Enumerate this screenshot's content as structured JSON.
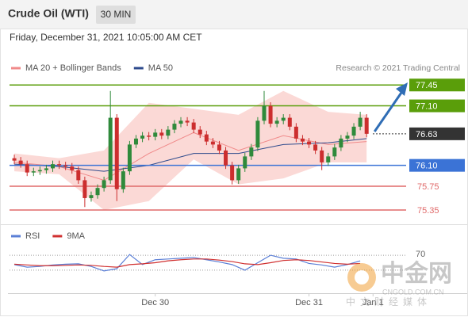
{
  "header": {
    "title": "Crude Oil (WTI)",
    "timeframe": "30 MIN",
    "date": "Friday, December 31, 2021 10:05:00 AM CET"
  },
  "chart_data": [
    {
      "type": "candlestick",
      "credit": "Research © 2021 Trading Central",
      "xlim": [
        -0.75,
        60.3
      ],
      "ylim": [
        75.11,
        77.68
      ],
      "candles": {
        "up_color": "#2f8a3b",
        "down_color": "#cc2e2e",
        "x": [
          0,
          1,
          2,
          3,
          4,
          5,
          6,
          7,
          8,
          9,
          10,
          11,
          12,
          13,
          14,
          15,
          16,
          17,
          18,
          19,
          20,
          21,
          22,
          23,
          24,
          25,
          26,
          27,
          28,
          29,
          30,
          31,
          32,
          33,
          34,
          35,
          36,
          37,
          38,
          39,
          40,
          41,
          42,
          43,
          44,
          45,
          46,
          47,
          48,
          49,
          50,
          51,
          52,
          53,
          54,
          55
        ],
        "open": [
          76.22,
          76.18,
          76.12,
          75.98,
          76.0,
          76.02,
          76.05,
          76.12,
          76.1,
          76.08,
          76.02,
          75.85,
          75.55,
          75.6,
          75.72,
          75.85,
          76.9,
          75.7,
          76.0,
          76.45,
          76.55,
          76.6,
          76.58,
          76.65,
          76.6,
          76.7,
          76.8,
          76.85,
          76.82,
          76.7,
          76.62,
          76.5,
          76.45,
          76.35,
          76.1,
          75.85,
          76.05,
          76.25,
          76.4,
          76.85,
          77.1,
          76.8,
          76.85,
          76.9,
          76.75,
          76.55,
          76.5,
          76.45,
          76.35,
          76.15,
          76.25,
          76.4,
          76.55,
          76.6,
          76.75,
          76.9
        ],
        "high": [
          76.28,
          76.24,
          76.18,
          76.06,
          76.08,
          76.11,
          76.18,
          76.18,
          76.16,
          76.14,
          76.08,
          75.91,
          75.66,
          75.78,
          75.91,
          77.35,
          76.96,
          76.06,
          76.51,
          76.61,
          76.66,
          76.66,
          76.71,
          76.71,
          76.76,
          76.86,
          76.91,
          76.91,
          76.88,
          76.76,
          76.68,
          76.56,
          76.51,
          76.41,
          76.16,
          76.11,
          76.31,
          76.46,
          76.91,
          77.35,
          77.16,
          76.91,
          76.96,
          76.96,
          76.81,
          76.61,
          76.56,
          76.51,
          76.41,
          76.31,
          76.46,
          76.61,
          76.66,
          76.81,
          77.0,
          76.96
        ],
        "low": [
          76.12,
          76.06,
          75.92,
          75.92,
          75.94,
          75.96,
          75.99,
          76.04,
          76.02,
          75.96,
          75.79,
          75.4,
          75.49,
          75.54,
          75.66,
          75.79,
          75.5,
          75.64,
          75.94,
          76.39,
          76.49,
          76.52,
          76.52,
          76.54,
          76.54,
          76.64,
          76.74,
          76.76,
          76.64,
          76.56,
          76.44,
          76.39,
          76.29,
          76.04,
          75.78,
          75.79,
          75.99,
          76.19,
          76.34,
          76.79,
          76.74,
          76.74,
          76.79,
          76.69,
          76.49,
          76.44,
          76.39,
          76.29,
          76.02,
          76.09,
          76.19,
          76.34,
          76.49,
          76.54,
          76.69,
          76.57
        ],
        "close": [
          76.18,
          76.12,
          75.98,
          76.0,
          76.02,
          76.05,
          76.12,
          76.1,
          76.08,
          76.02,
          75.85,
          75.55,
          75.6,
          75.72,
          75.85,
          76.9,
          75.7,
          76.0,
          76.45,
          76.55,
          76.6,
          76.58,
          76.65,
          76.6,
          76.7,
          76.8,
          76.85,
          76.82,
          76.7,
          76.62,
          76.5,
          76.45,
          76.35,
          76.1,
          75.85,
          76.05,
          76.25,
          76.4,
          76.85,
          77.1,
          76.8,
          76.85,
          76.9,
          76.75,
          76.55,
          76.5,
          76.45,
          76.35,
          76.15,
          76.25,
          76.4,
          76.55,
          76.6,
          76.75,
          76.9,
          76.63
        ]
      },
      "series": [
        {
          "name": "MA 20 + Bollinger Bands",
          "color": "#f08a8a",
          "band_color": "#fbd9d6",
          "x": [
            0,
            7,
            14,
            21,
            28,
            35,
            42,
            49,
            55
          ],
          "values": [
            76.15,
            76.08,
            75.85,
            76.3,
            76.65,
            76.35,
            76.6,
            76.45,
            76.5
          ],
          "upper": [
            76.3,
            76.22,
            76.35,
            77.15,
            77.05,
            76.95,
            77.35,
            77.0,
            76.95
          ],
          "lower": [
            76.0,
            75.95,
            75.35,
            75.5,
            76.2,
            75.78,
            75.88,
            76.15,
            76.15
          ]
        },
        {
          "name": "MA 50",
          "color": "#2d4a8c",
          "x": [
            0,
            7,
            14,
            21,
            28,
            35,
            42,
            49,
            55
          ],
          "values": [
            76.12,
            76.08,
            76.0,
            76.1,
            76.3,
            76.3,
            76.45,
            76.48,
            76.55
          ]
        }
      ],
      "levels": [
        {
          "value": 77.45,
          "label": "77.45",
          "color": "#5a9e0a",
          "style": "solid",
          "label_style": "box"
        },
        {
          "value": 77.1,
          "label": "77.10",
          "color": "#5a9e0a",
          "style": "solid",
          "label_style": "box"
        },
        {
          "value": 76.63,
          "label": "76.63",
          "color": "#333333",
          "style": "dotted",
          "label_style": "box"
        },
        {
          "value": 76.1,
          "label": "76.10",
          "color": "#3b73d6",
          "style": "solid",
          "label_style": "box"
        },
        {
          "value": 75.75,
          "label": "75.75",
          "color": "#e06a6a",
          "style": "solid",
          "label_style": "text"
        },
        {
          "value": 75.35,
          "label": "75.35",
          "color": "#e06a6a",
          "style": "solid",
          "label_style": "text"
        }
      ]
    },
    {
      "type": "line",
      "xlim": [
        -0.75,
        60.3
      ],
      "ylim": [
        0,
        100
      ],
      "yticks": [
        70
      ],
      "levels": [
        30
      ],
      "xticks": [
        {
          "value": 22,
          "label": "Dec 30"
        },
        {
          "value": 46,
          "label": "Dec 31"
        },
        {
          "value": 56,
          "label": "Jan 1"
        }
      ],
      "series": [
        {
          "name": "RSI",
          "color": "#5b7fd6",
          "x": [
            0,
            2,
            4,
            6,
            8,
            10,
            12,
            14,
            16,
            18,
            20,
            22,
            24,
            26,
            28,
            30,
            32,
            34,
            36,
            38,
            40,
            42,
            44,
            46,
            48,
            50,
            52,
            54
          ],
          "values": [
            45,
            38,
            40,
            44,
            46,
            47,
            40,
            28,
            34,
            72,
            45,
            58,
            60,
            62,
            64,
            58,
            52,
            45,
            30,
            50,
            70,
            62,
            60,
            48,
            44,
            38,
            45,
            55
          ]
        },
        {
          "name": "9MA",
          "color": "#d03030",
          "x": [
            0,
            2,
            4,
            6,
            8,
            10,
            12,
            14,
            16,
            18,
            20,
            22,
            24,
            26,
            28,
            30,
            32,
            34,
            36,
            38,
            40,
            42,
            44,
            46,
            48,
            50,
            52,
            54
          ],
          "values": [
            46,
            44,
            42,
            42,
            43,
            44,
            43,
            40,
            38,
            45,
            47,
            50,
            55,
            58,
            60,
            60,
            57,
            53,
            47,
            45,
            50,
            56,
            58,
            56,
            52,
            48,
            46,
            48
          ]
        }
      ]
    }
  ],
  "watermark": {
    "brand": "中金网",
    "site": "CNGOLD.COM.CN",
    "tagline": "中文财经媒体"
  }
}
